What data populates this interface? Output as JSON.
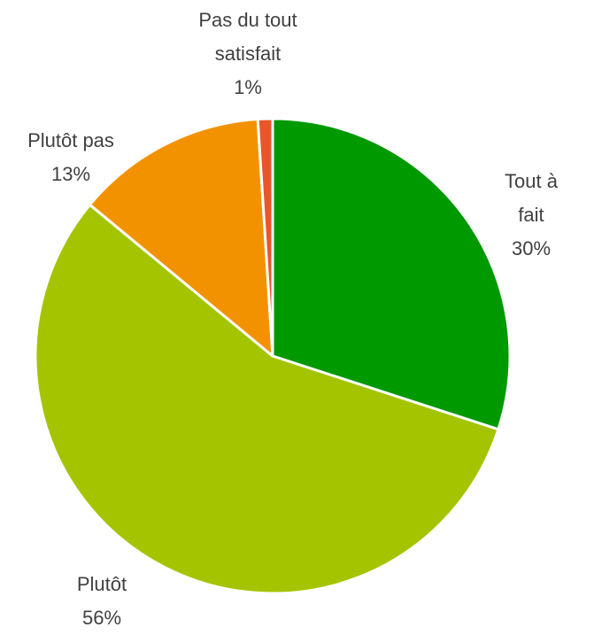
{
  "chart_data": {
    "type": "pie",
    "categories": [
      "Tout à fait",
      "Plutôt",
      "Plutôt pas",
      "Pas du tout satisfait"
    ],
    "values": [
      30,
      56,
      13,
      1
    ],
    "value_labels": [
      "30%",
      "56%",
      "13%",
      "1%"
    ],
    "colors": [
      "#009900",
      "#a5c400",
      "#f39200",
      "#e8562a"
    ]
  }
}
